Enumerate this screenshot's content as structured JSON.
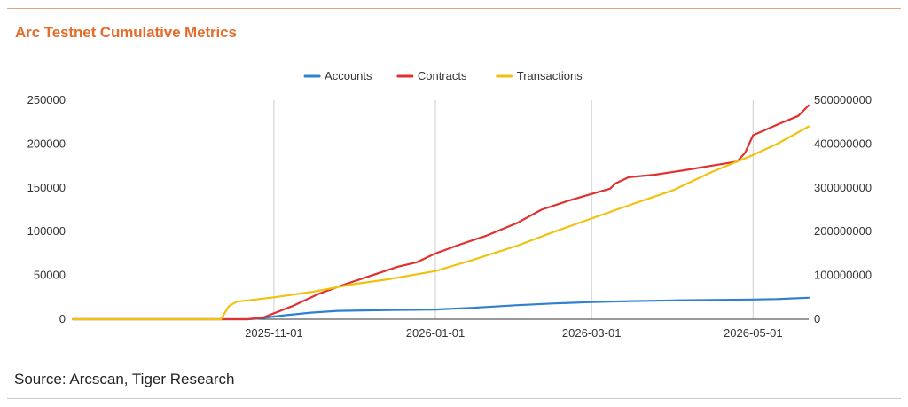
{
  "page": {
    "title": "Arc Testnet Cumulative Metrics",
    "source": "Source: Arcscan, Tiger Research"
  },
  "chart_data": {
    "type": "line",
    "title": "Arc Testnet Cumulative Metrics",
    "xlabel": "",
    "ylabel": "",
    "y2label": "",
    "x_type": "date",
    "xlim": [
      "2025-08-17",
      "2026-05-22"
    ],
    "x_ticks": [
      "2025-11-01",
      "2026-01-01",
      "2026-03-01",
      "2026-05-01"
    ],
    "ylim": [
      0,
      250000
    ],
    "y_ticks": [
      0,
      50000,
      100000,
      150000,
      200000,
      250000
    ],
    "y2lim": [
      0,
      500000000
    ],
    "y2_ticks": [
      0,
      100000000,
      200000000,
      300000000,
      400000000,
      500000000
    ],
    "grid": {
      "vertical": true,
      "horizontal": false
    },
    "legend_position": "top-center",
    "series": [
      {
        "name": "Accounts",
        "axis": "left",
        "color": "#2f80d1",
        "x": [
          "2025-08-17",
          "2025-10-22",
          "2025-10-25",
          "2025-11-05",
          "2025-11-15",
          "2025-11-25",
          "2025-12-15",
          "2026-01-01",
          "2026-01-15",
          "2026-02-01",
          "2026-02-15",
          "2026-03-01",
          "2026-03-15",
          "2026-04-01",
          "2026-04-15",
          "2026-05-01",
          "2026-05-10",
          "2026-05-22"
        ],
        "values": [
          0,
          0,
          500,
          4500,
          7500,
          9500,
          10500,
          11000,
          13000,
          16000,
          18000,
          19500,
          20500,
          21500,
          22000,
          22500,
          23000,
          24500
        ]
      },
      {
        "name": "Contracts",
        "axis": "left",
        "color": "#e03131",
        "x": [
          "2025-08-17",
          "2025-10-22",
          "2025-10-28",
          "2025-11-08",
          "2025-11-18",
          "2025-11-28",
          "2025-12-08",
          "2025-12-18",
          "2025-12-25",
          "2026-01-01",
          "2026-01-10",
          "2026-01-20",
          "2026-02-01",
          "2026-02-10",
          "2026-02-20",
          "2026-03-01",
          "2026-03-08",
          "2026-03-10",
          "2026-03-15",
          "2026-03-25",
          "2026-04-05",
          "2026-04-15",
          "2026-04-25",
          "2026-04-28",
          "2026-05-01",
          "2026-05-10",
          "2026-05-18",
          "2026-05-22"
        ],
        "values": [
          0,
          0,
          2000,
          15000,
          29000,
          40000,
          50000,
          60000,
          65000,
          75000,
          85000,
          95000,
          110000,
          125000,
          135000,
          143000,
          149000,
          155000,
          162000,
          165000,
          170000,
          175000,
          180000,
          190000,
          210000,
          222000,
          232000,
          244000
        ]
      },
      {
        "name": "Transactions",
        "axis": "right",
        "color": "#f0c20f",
        "x": [
          "2025-08-17",
          "2025-10-12",
          "2025-10-15",
          "2025-10-18",
          "2025-10-25",
          "2025-11-01",
          "2025-11-15",
          "2025-12-01",
          "2025-12-15",
          "2026-01-01",
          "2026-01-15",
          "2026-02-01",
          "2026-02-15",
          "2026-03-01",
          "2026-03-15",
          "2026-04-01",
          "2026-04-15",
          "2026-05-01",
          "2026-05-10",
          "2026-05-22"
        ],
        "values": [
          0,
          0,
          30000000,
          40000000,
          45000000,
          50000000,
          62000000,
          80000000,
          92000000,
          110000000,
          135000000,
          168000000,
          200000000,
          230000000,
          260000000,
          295000000,
          335000000,
          375000000,
          400000000,
          440000000
        ]
      }
    ]
  }
}
